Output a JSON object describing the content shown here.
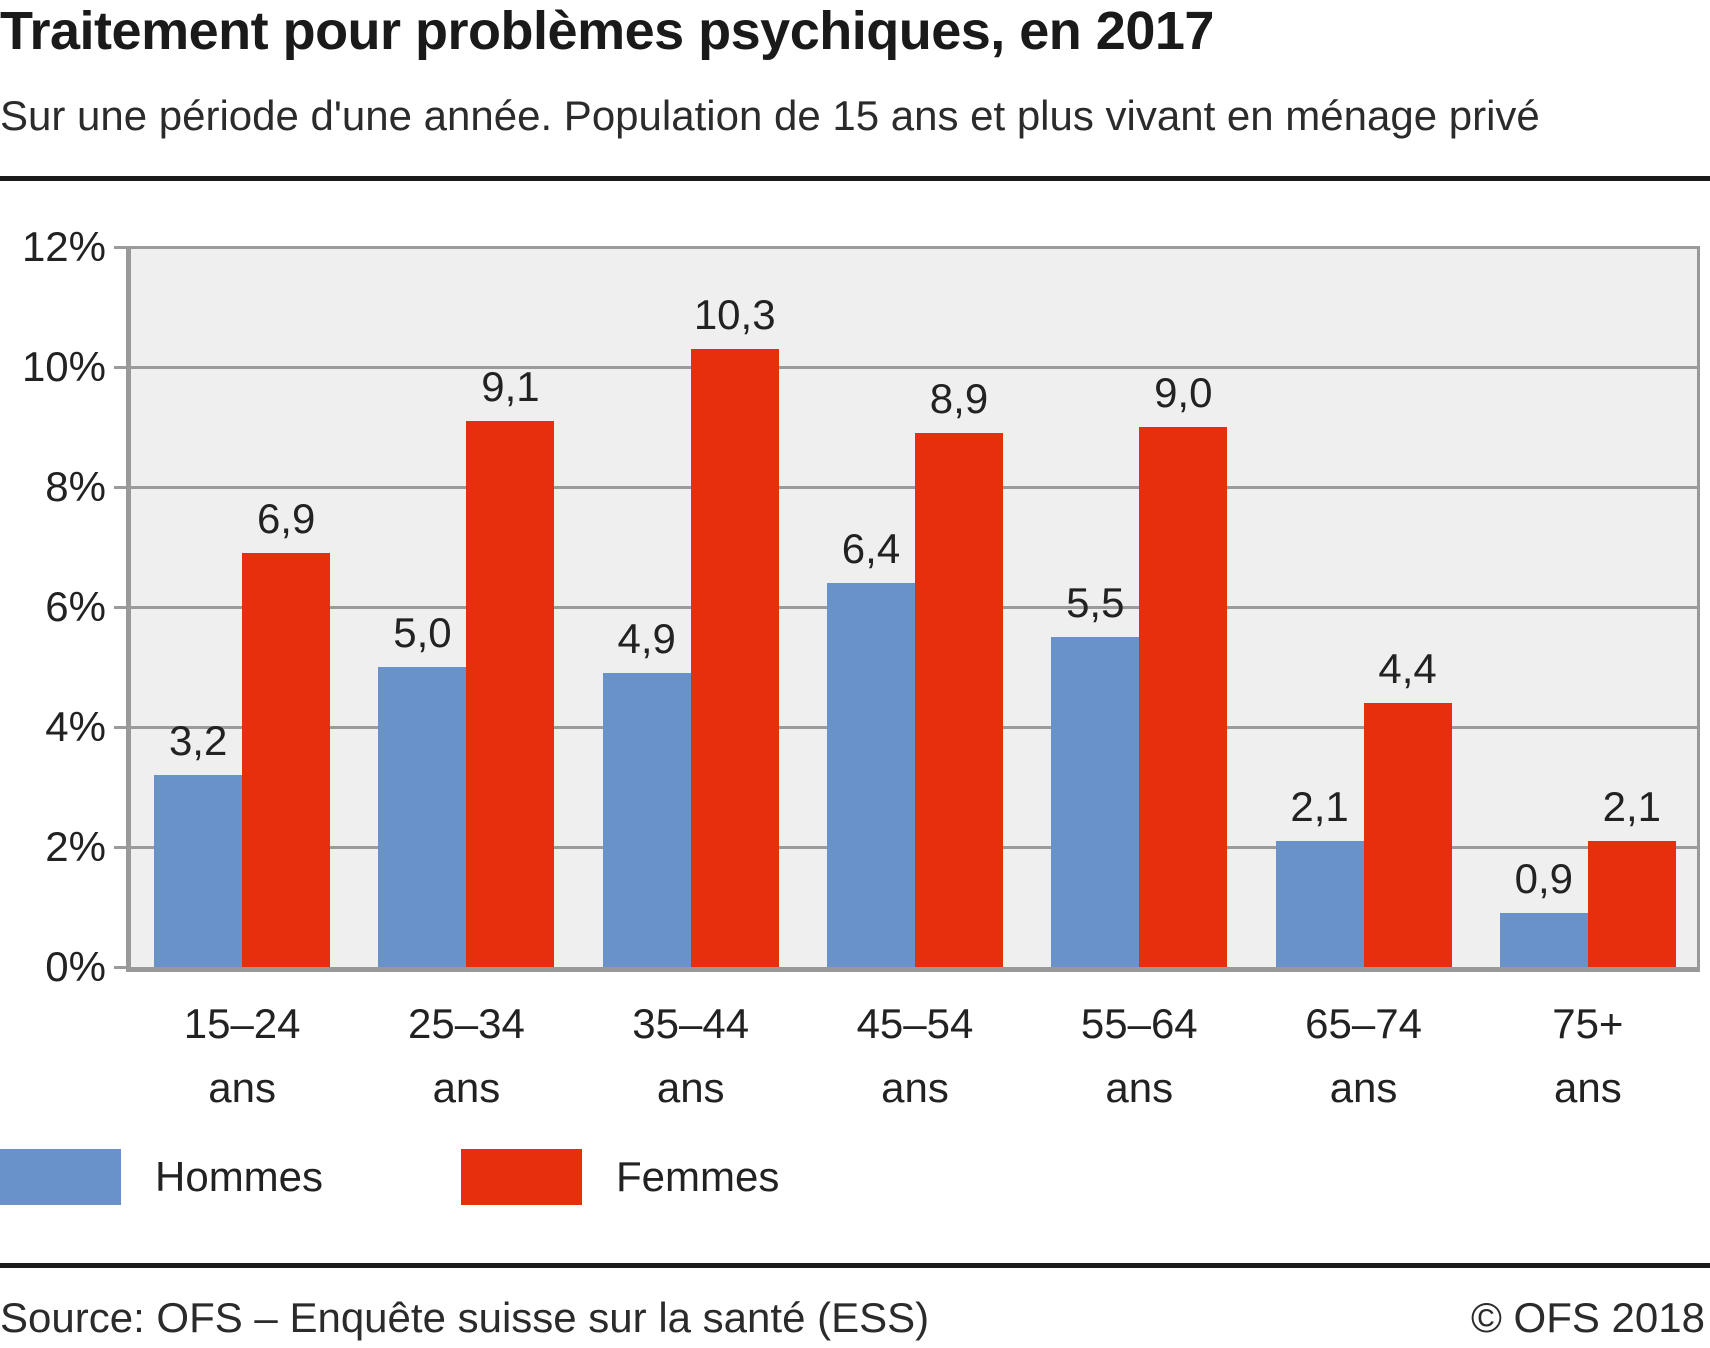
{
  "header": {
    "title": "Traitement pour problèmes psychiques, en 2017",
    "subtitle": "Sur une période d'une année. Population de 15 ans et plus vivant en ménage privé"
  },
  "chart_data": {
    "type": "bar",
    "title": "Traitement pour problèmes psychiques, en 2017",
    "subtitle": "Sur une période d'une année. Population de 15 ans et plus vivant en ménage privé",
    "categories": [
      "15–24",
      "25–34",
      "35–44",
      "45–54",
      "55–64",
      "65–74",
      "75+"
    ],
    "category_unit": "ans",
    "series": [
      {
        "name": "Hommes",
        "color": "#6992cb",
        "values": [
          3.2,
          5.0,
          4.9,
          6.4,
          5.5,
          2.1,
          0.9
        ],
        "labels": [
          "3,2",
          "5,0",
          "4,9",
          "6,4",
          "5,5",
          "2,1",
          "0,9"
        ]
      },
      {
        "name": "Femmes",
        "color": "#e6300d",
        "values": [
          6.9,
          9.1,
          10.3,
          8.9,
          9.0,
          4.4,
          2.1
        ],
        "labels": [
          "6,9",
          "9,1",
          "10,3",
          "8,9",
          "9,0",
          "4,4",
          "2,1"
        ]
      }
    ],
    "unit": "%",
    "ylim": [
      0,
      12
    ],
    "ytick_step": 2,
    "yticks": [
      "12%",
      "10%",
      "8%",
      "6%",
      "4%",
      "2%",
      "0%"
    ],
    "grid": "horizontal",
    "plot_background": "#efefef",
    "legend_position": "bottom-left",
    "value_labels": true
  },
  "footer": {
    "source": "Source: OFS – Enquête suisse sur la santé (ESS)",
    "copyright": "© OFS 2018"
  }
}
